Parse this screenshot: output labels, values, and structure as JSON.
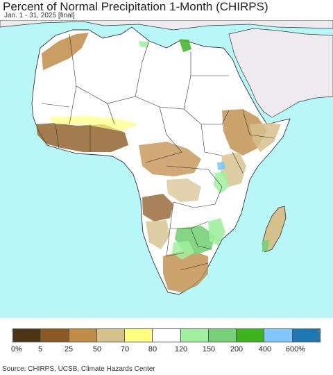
{
  "title": "Percent of Normal Precipitation 1-Month (CHIRPS)",
  "subtitle": "Jan. 1 - 31, 2025 [final]",
  "source": "Source: CHIRPS, UCSB, Climate Hazards Center",
  "colors": {
    "ocean": "#b8f7f7",
    "land_default": "#ffffff",
    "outside_region": "#efeaf0",
    "borders": "#333333"
  },
  "legend": {
    "labels": [
      "0%",
      "5",
      "25",
      "50",
      "70",
      "80",
      "120",
      "150",
      "200",
      "400",
      "600%"
    ],
    "colors": [
      "#4d3615",
      "#8b5a23",
      "#c08c48",
      "#d6c08b",
      "#ffff80",
      "#ffffff",
      "#a0f0a0",
      "#78d078",
      "#3cb41e",
      "#80c8ff",
      "#1e78b4"
    ]
  }
}
